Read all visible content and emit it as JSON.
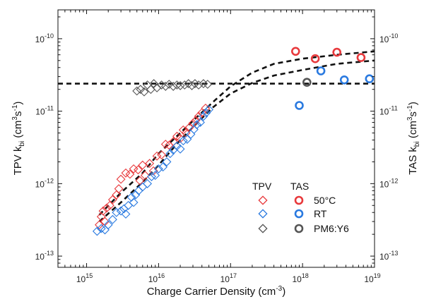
{
  "chart_data": {
    "type": "scatter",
    "x_scale": "log",
    "y_scale": "log",
    "xlim": [
      400000000000000.0,
      1e+19
    ],
    "ylim": [
      7e-14,
      2.5e-10
    ],
    "x_ticks": [
      {
        "value": 1000000000000000.0,
        "base": "10",
        "exp": "15"
      },
      {
        "value": 1e+16,
        "base": "10",
        "exp": "16"
      },
      {
        "value": 1e+17,
        "base": "10",
        "exp": "17"
      },
      {
        "value": 1e+18,
        "base": "10",
        "exp": "18"
      },
      {
        "value": 1e+19,
        "base": "10",
        "exp": "19"
      }
    ],
    "y_ticks": [
      {
        "value": 1e-13,
        "base": "10",
        "exp": "-13"
      },
      {
        "value": 1e-12,
        "base": "10",
        "exp": "-12"
      },
      {
        "value": 1e-11,
        "base": "10",
        "exp": "-11"
      },
      {
        "value": 1e-10,
        "base": "10",
        "exp": "-10"
      }
    ],
    "y_right_ticks": [
      {
        "value": 1e-13,
        "base": "10",
        "exp": "-13"
      },
      {
        "value": 1e-12,
        "base": "10",
        "exp": "-12"
      },
      {
        "value": 1e-11,
        "base": "10",
        "exp": "-11"
      },
      {
        "value": 1e-10,
        "base": "10",
        "exp": "-10"
      }
    ],
    "xlabel": {
      "text": "Charge Carrier Density (cm",
      "sup": "-3",
      "tail": ")"
    },
    "ylabel_left": {
      "pre": "TPV k",
      "sub": "bi",
      "mid": " (cm",
      "sup": "3",
      "mid2": "s",
      "sup2": "-1",
      "tail": ")"
    },
    "ylabel_right": {
      "pre": "TAS k",
      "sub": "bi",
      "mid": " (cm",
      "sup": "3",
      "mid2": "s",
      "sup2": "-1",
      "tail": ")"
    },
    "legend": {
      "header_tpv": "TPV",
      "header_tas": "TAS",
      "entries": [
        {
          "label": "50°C",
          "color": "#e8393c"
        },
        {
          "label": "RT",
          "color": "#2a7ae0"
        },
        {
          "label": "PM6:Y6",
          "color": "#555555"
        }
      ],
      "position": "lower-right"
    },
    "series": [
      {
        "name": "50°C",
        "method": "TPV",
        "marker": "diamond-open",
        "color": "#e8393c",
        "points": [
          [
            1500000000000000.0,
            2.7e-13
          ],
          [
            1600000000000000.0,
            3.5e-13
          ],
          [
            1700000000000000.0,
            4.2e-13
          ],
          [
            1900000000000000.0,
            4.6e-13
          ],
          [
            2100000000000000.0,
            5e-13
          ],
          [
            2300000000000000.0,
            6e-13
          ],
          [
            2600000000000000.0,
            7e-13
          ],
          [
            3000000000000000.0,
            1.15e-12
          ],
          [
            3500000000000000.0,
            1.4e-12
          ],
          [
            4000000000000000.0,
            1.35e-12
          ],
          [
            4500000000000000.0,
            1.6e-12
          ],
          [
            5200000000000000.0,
            1.55e-12
          ],
          [
            6000000000000000.0,
            1.8e-12
          ],
          [
            6500000000000000.0,
            1.3e-12
          ],
          [
            7500000000000000.0,
            1.9e-12
          ],
          [
            8500000000000000.0,
            1.5e-12
          ],
          [
            9500000000000000.0,
            2.4e-12
          ],
          [
            1.1e+16,
            2.5e-12
          ],
          [
            1.25e+16,
            3.5e-12
          ],
          [
            1.4e+16,
            3.4e-12
          ],
          [
            1.6e+16,
            3.8e-12
          ],
          [
            1.8e+16,
            4.5e-12
          ],
          [
            2e+16,
            4.2e-12
          ],
          [
            2.2e+16,
            5.5e-12
          ],
          [
            2.4e+16,
            5e-12
          ],
          [
            2.7e+16,
            6e-12
          ],
          [
            3e+16,
            6.8e-12
          ],
          [
            3.3e+16,
            7.5e-12
          ],
          [
            3.6e+16,
            8.5e-12
          ],
          [
            4e+16,
            9.5e-12
          ],
          [
            4.5e+16,
            1.1e-11
          ],
          [
            1800000000000000.0,
            3e-13
          ],
          [
            2800000000000000.0,
            8.5e-13
          ],
          [
            5500000000000000.0,
            1.1e-12
          ]
        ]
      },
      {
        "name": "RT",
        "method": "TPV",
        "marker": "diamond-open",
        "color": "#2a7ae0",
        "points": [
          [
            1400000000000000.0,
            2.2e-13
          ],
          [
            1600000000000000.0,
            2.4e-13
          ],
          [
            1800000000000000.0,
            2.3e-13
          ],
          [
            2000000000000000.0,
            2.7e-13
          ],
          [
            2300000000000000.0,
            3.2e-13
          ],
          [
            2600000000000000.0,
            4e-13
          ],
          [
            3000000000000000.0,
            4.2e-13
          ],
          [
            3300000000000000.0,
            4.5e-13
          ],
          [
            3800000000000000.0,
            5e-13
          ],
          [
            4200000000000000.0,
            6.5e-13
          ],
          [
            4800000000000000.0,
            7e-13
          ],
          [
            5300000000000000.0,
            8e-13
          ],
          [
            6000000000000000.0,
            9e-13
          ],
          [
            7000000000000000.0,
            1e-12
          ],
          [
            8000000000000000.0,
            1.25e-12
          ],
          [
            9000000000000000.0,
            1.3e-12
          ],
          [
            1e+16,
            1.6e-12
          ],
          [
            1.15e+16,
            1.7e-12
          ],
          [
            1.3e+16,
            2e-12
          ],
          [
            1.45e+16,
            2.6e-12
          ],
          [
            1.6e+16,
            2.9e-12
          ],
          [
            1.8e+16,
            3.3e-12
          ],
          [
            2e+16,
            3e-12
          ],
          [
            2.2e+16,
            3.9e-12
          ],
          [
            2.5e+16,
            4.1e-12
          ],
          [
            2.8e+16,
            4.8e-12
          ],
          [
            3.1e+16,
            5.6e-12
          ],
          [
            3.4e+16,
            6.5e-12
          ],
          [
            3.8e+16,
            7e-12
          ],
          [
            4.2e+16,
            8.5e-12
          ],
          [
            4.6e+16,
            9.5e-12
          ],
          [
            5e+16,
            1.05e-11
          ],
          [
            3500000000000000.0,
            3.8e-13
          ],
          [
            4500000000000000.0,
            5.5e-13
          ]
        ]
      },
      {
        "name": "PM6:Y6",
        "method": "TPV",
        "marker": "diamond-open",
        "color": "#555555",
        "points": [
          [
            5000000000000000.0,
            1.9e-11
          ],
          [
            5600000000000000.0,
            2e-11
          ],
          [
            6300000000000000.0,
            1.85e-11
          ],
          [
            7000000000000000.0,
            2.3e-11
          ],
          [
            7800000000000000.0,
            2e-11
          ],
          [
            8600000000000000.0,
            2.4e-11
          ],
          [
            9500000000000000.0,
            2.1e-11
          ],
          [
            1.1e+16,
            2.3e-11
          ],
          [
            1.25e+16,
            2.2e-11
          ],
          [
            1.4e+16,
            2.35e-11
          ],
          [
            1.6e+16,
            2.2e-11
          ],
          [
            1.8e+16,
            2.3e-11
          ],
          [
            2e+16,
            2.25e-11
          ],
          [
            2.3e+16,
            2.3e-11
          ],
          [
            2.6e+16,
            2.4e-11
          ],
          [
            2.9e+16,
            2.25e-11
          ],
          [
            3.2e+16,
            2.4e-11
          ],
          [
            3.6e+16,
            2.3e-11
          ],
          [
            4.2e+16,
            2.4e-11
          ],
          [
            4.8e+16,
            2.35e-11
          ]
        ]
      },
      {
        "name": "50°C",
        "method": "TAS",
        "marker": "circle-open",
        "color": "#e8393c",
        "points": [
          [
            8e+17,
            6.7e-11
          ],
          [
            1.5e+18,
            5.3e-11
          ],
          [
            3e+18,
            6.5e-11
          ],
          [
            6.5e+18,
            5.5e-11
          ]
        ]
      },
      {
        "name": "RT",
        "method": "TAS",
        "marker": "circle-open",
        "color": "#2a7ae0",
        "points": [
          [
            9e+17,
            1.2e-11
          ],
          [
            1.8e+18,
            3.6e-11
          ],
          [
            3.8e+18,
            2.7e-11
          ],
          [
            8.5e+18,
            2.8e-11
          ]
        ]
      },
      {
        "name": "PM6:Y6",
        "method": "TAS",
        "marker": "circle-open",
        "color": "#555555",
        "points": [
          [
            1.15e+18,
            2.5e-11
          ]
        ]
      }
    ],
    "fit_lines": [
      {
        "style": "dashed",
        "color": "#111111",
        "points": [
          [
            400000000000000.0,
            2.4e-11
          ],
          [
            1e+19,
            2.4e-11
          ]
        ]
      },
      {
        "style": "dashed",
        "color": "#111111",
        "points": [
          [
            1500000000000000.0,
            3e-13
          ],
          [
            3000000000000000.0,
            5.5e-13
          ],
          [
            6000000000000000.0,
            1.05e-12
          ],
          [
            1e+16,
            1.8e-12
          ],
          [
            2e+16,
            4e-12
          ],
          [
            3.5e+16,
            7e-12
          ],
          [
            5.5e+16,
            1.1e-11
          ],
          [
            1e+17,
            1.75e-11
          ],
          [
            2e+17,
            2.45e-11
          ],
          [
            4e+17,
            3.1e-11
          ],
          [
            1e+18,
            3.7e-11
          ],
          [
            3e+18,
            4.5e-11
          ],
          [
            1e+19,
            5e-11
          ]
        ]
      },
      {
        "style": "dashed",
        "color": "#111111",
        "points": [
          [
            1500000000000000.0,
            3.7e-13
          ],
          [
            3000000000000000.0,
            7.5e-13
          ],
          [
            6000000000000000.0,
            1.4e-12
          ],
          [
            1e+16,
            2.6e-12
          ],
          [
            2e+16,
            5e-12
          ],
          [
            3.5e+16,
            8.5e-12
          ],
          [
            6e+16,
            1.4e-11
          ],
          [
            1e+17,
            2.2e-11
          ],
          [
            2e+17,
            3.4e-11
          ],
          [
            4e+17,
            4.5e-11
          ],
          [
            1e+18,
            5.3e-11
          ],
          [
            3e+18,
            6e-11
          ],
          [
            1e+19,
            6.7e-11
          ]
        ]
      }
    ],
    "grid": false
  }
}
